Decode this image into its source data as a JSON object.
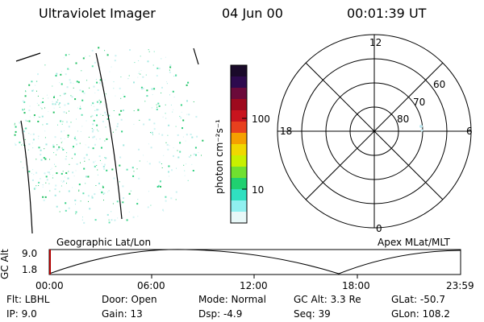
{
  "header": {
    "title": "Ultraviolet Imager",
    "date": "04 Jun 00",
    "time": "00:01:39 UT"
  },
  "colorbar": {
    "label": "photon cm⁻²s⁻¹",
    "ticks": [
      "100",
      "10"
    ],
    "colors": [
      "#1a0a2a",
      "#2d0a4e",
      "#6b0a3a",
      "#9e0a1e",
      "#c8141e",
      "#e8401e",
      "#f5a000",
      "#f0d800",
      "#c8f000",
      "#70e030",
      "#20d070",
      "#30e0c0",
      "#90f0f0",
      "#e8f8f8"
    ]
  },
  "polar": {
    "mlt_labels": {
      "top": "12",
      "left": "18",
      "right": "6",
      "bottom": "0"
    },
    "lat_labels": [
      "60",
      "70",
      "80"
    ]
  },
  "captions": {
    "left": "Geographic Lat/Lon",
    "right": "Apex MLat/MLT"
  },
  "timeline": {
    "axis_label": "GC Alt",
    "y_ticks": [
      "9.0",
      "1.8"
    ],
    "x_ticks": [
      "00:00",
      "06:00",
      "12:00",
      "18:00",
      "23:59"
    ]
  },
  "info": {
    "flt": "Flt: LBHL",
    "ip": "IP:  9.0",
    "door": "Door: Open",
    "gain": "Gain: 13",
    "mode": "Mode: Normal",
    "dsp": "Dsp:   -4.9",
    "gcalt": "GC Alt: 3.3 Re",
    "seq": "Seq: 39",
    "glat": "GLat: -50.7",
    "glon": "GLon: 108.2"
  }
}
